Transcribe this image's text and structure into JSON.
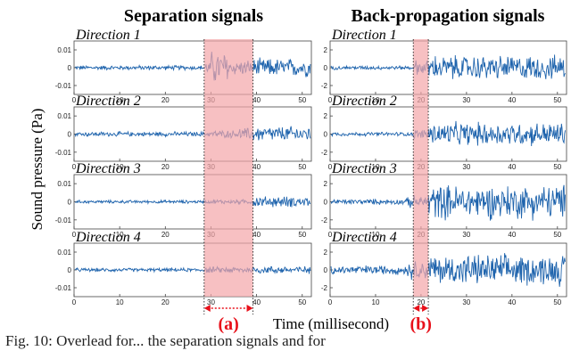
{
  "figure": {
    "caption": "Fig. 10:  Overlead for...  the separation signals and for",
    "ylabel": "Sound pressure (Pa)",
    "xlabel": "Time (millisecond)",
    "colors": {
      "signal": "#1f64ad",
      "highlight": "#f4a5a8",
      "marker": "#e8101a",
      "axis": "#555555"
    }
  },
  "chart_data": [
    {
      "type": "line",
      "title": "Separation signals",
      "xlim": [
        0,
        52
      ],
      "xticks": [
        0,
        10,
        20,
        30,
        40,
        50
      ],
      "highlight": {
        "label": "(a)",
        "range": [
          28.5,
          39.2
        ]
      },
      "panels": [
        {
          "name": "Direction 1",
          "ylim": [
            -0.015,
            0.015
          ],
          "yticks": [
            0.01,
            0,
            -0.01
          ],
          "ytick_labels": [
            "0.01",
            "0",
            "-0.01"
          ],
          "segments": [
            {
              "x": [
                0,
                28.5
              ],
              "amp": 0.0015
            },
            {
              "x": [
                28.5,
                30
              ],
              "amp": 0.004
            },
            {
              "x": [
                30,
                34
              ],
              "amp": 0.011
            },
            {
              "x": [
                34,
                39
              ],
              "amp": 0.005
            },
            {
              "x": [
                39,
                52
              ],
              "amp": 0.006
            }
          ]
        },
        {
          "name": "Direction 2",
          "ylim": [
            -0.015,
            0.015
          ],
          "yticks": [
            0.01,
            0,
            -0.01
          ],
          "ytick_labels": [
            "0.01",
            "0",
            "-0.01"
          ],
          "segments": [
            {
              "x": [
                0,
                30
              ],
              "amp": 0.0015
            },
            {
              "x": [
                30,
                36
              ],
              "amp": 0.0025
            },
            {
              "x": [
                36,
                39
              ],
              "amp": 0.004
            },
            {
              "x": [
                39,
                52
              ],
              "amp": 0.005
            }
          ]
        },
        {
          "name": "Direction 3",
          "ylim": [
            -0.015,
            0.015
          ],
          "yticks": [
            0.01,
            0,
            -0.01
          ],
          "ytick_labels": [
            "0.01",
            "0",
            "-0.01"
          ],
          "segments": [
            {
              "x": [
                0,
                30
              ],
              "amp": 0.001
            },
            {
              "x": [
                30,
                39
              ],
              "amp": 0.0015
            },
            {
              "x": [
                39,
                52
              ],
              "amp": 0.0035
            }
          ]
        },
        {
          "name": "Direction 4",
          "ylim": [
            -0.015,
            0.015
          ],
          "yticks": [
            0.01,
            0,
            -0.01
          ],
          "ytick_labels": [
            "0.01",
            "0",
            "-0.01"
          ],
          "segments": [
            {
              "x": [
                0,
                28.5
              ],
              "amp": 0.0012
            },
            {
              "x": [
                28.5,
                39
              ],
              "amp": 0.002
            },
            {
              "x": [
                39,
                52
              ],
              "amp": 0.0025
            }
          ]
        }
      ]
    },
    {
      "type": "line",
      "title": "Back-propagation signals",
      "xlim": [
        0,
        52
      ],
      "xticks": [
        0,
        10,
        20,
        30,
        40,
        50
      ],
      "highlight": {
        "label": "(b)",
        "range": [
          18.3,
          21.6
        ]
      },
      "panels": [
        {
          "name": "Direction 1",
          "ylim": [
            -3,
            3
          ],
          "yticks": [
            2,
            0,
            -2
          ],
          "ytick_labels": [
            "2",
            "0",
            "-2"
          ],
          "segments": [
            {
              "x": [
                0,
                18.5
              ],
              "amp": 0.25
            },
            {
              "x": [
                18.5,
                21.5
              ],
              "amp": 1.0
            },
            {
              "x": [
                21.5,
                52
              ],
              "amp": 1.6
            }
          ]
        },
        {
          "name": "Direction 2",
          "ylim": [
            -3,
            3
          ],
          "yticks": [
            2,
            0,
            -2
          ],
          "ytick_labels": [
            "2",
            "0",
            "-2"
          ],
          "segments": [
            {
              "x": [
                0,
                18
              ],
              "amp": 0.25
            },
            {
              "x": [
                18,
                21.5
              ],
              "amp": 0.6
            },
            {
              "x": [
                21.5,
                52
              ],
              "amp": 1.5
            }
          ]
        },
        {
          "name": "Direction 3",
          "ylim": [
            -3,
            3
          ],
          "yticks": [
            2,
            0,
            -2
          ],
          "ytick_labels": [
            "2",
            "0",
            "-2"
          ],
          "segments": [
            {
              "x": [
                0,
                17
              ],
              "amp": 0.35
            },
            {
              "x": [
                17,
                21.5
              ],
              "amp": 0.8
            },
            {
              "x": [
                21.5,
                52
              ],
              "amp": 2.2
            }
          ]
        },
        {
          "name": "Direction 4",
          "ylim": [
            -3,
            3
          ],
          "yticks": [
            2,
            0,
            -2
          ],
          "ytick_labels": [
            "2",
            "0",
            "-2"
          ],
          "segments": [
            {
              "x": [
                0,
                17
              ],
              "amp": 0.6
            },
            {
              "x": [
                17,
                21.5
              ],
              "amp": 1.2
            },
            {
              "x": [
                21.5,
                52
              ],
              "amp": 2.0
            }
          ]
        }
      ]
    }
  ]
}
